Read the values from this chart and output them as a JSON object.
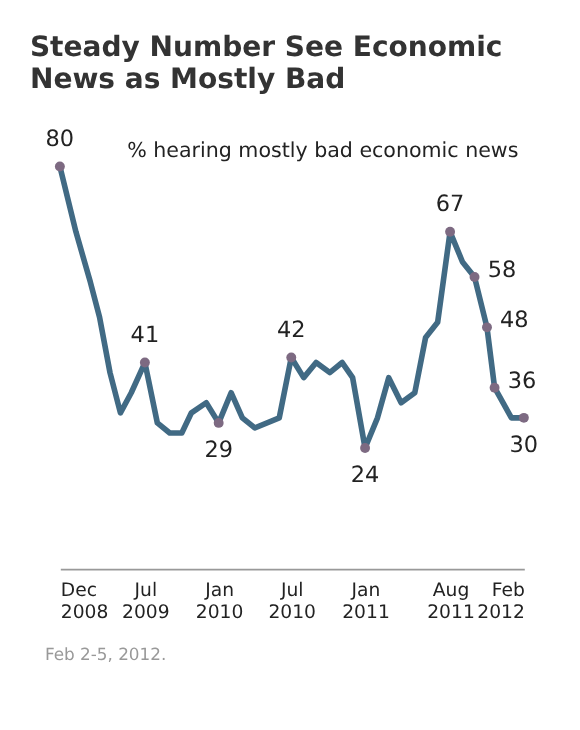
{
  "chart_data": {
    "type": "line",
    "title": "Steady Number See Economic News as Mostly Bad",
    "annotations": [
      "% hearing mostly bad economic news",
      "Feb 2-5, 2012."
    ],
    "x": [
      "2008-12-01",
      "2009-01-10",
      "2009-02-15",
      "2009-03-10",
      "2009-04-05",
      "2009-05-01",
      "2009-05-28",
      "2009-07-01",
      "2009-08-01",
      "2009-09-01",
      "2009-10-01",
      "2009-10-25",
      "2009-12-01",
      "2010-01-01",
      "2010-02-01",
      "2010-03-01",
      "2010-04-01",
      "2010-06-01",
      "2010-07-01",
      "2010-08-01",
      "2010-09-01",
      "2010-10-05",
      "2010-11-05",
      "2010-12-01",
      "2011-01-01",
      "2011-02-01",
      "2011-03-01",
      "2011-04-01",
      "2011-05-05",
      "2011-06-01",
      "2011-07-01",
      "2011-08-01",
      "2011-09-01",
      "2011-10-01",
      "2011-11-01",
      "2011-11-20",
      "2012-01-01",
      "2012-02-01"
    ],
    "series": [
      {
        "color": "#416a84",
        "values": [
          80,
          67,
          57,
          50,
          39,
          31,
          35,
          41,
          29,
          27,
          27,
          31,
          33,
          29,
          35,
          30,
          28,
          30,
          42,
          38,
          41,
          39,
          41,
          38,
          24,
          30,
          38,
          33,
          35,
          46,
          49,
          67,
          61,
          58,
          48,
          36,
          30,
          30
        ],
        "value_labels": [
          "80",
          null,
          null,
          null,
          null,
          null,
          null,
          "41",
          null,
          null,
          null,
          null,
          null,
          "29",
          null,
          null,
          null,
          null,
          "42",
          null,
          null,
          null,
          null,
          null,
          "24",
          null,
          null,
          null,
          null,
          null,
          null,
          "67",
          null,
          "58",
          "48",
          "36",
          null,
          "30"
        ]
      }
    ],
    "xlim": [
      "2008-12-01",
      "2012-02-01"
    ],
    "xticks": [
      {
        "value": "2008-12-01",
        "label": "Dec 2008"
      },
      {
        "value": "2009-07-01",
        "label": "Jul 2009"
      },
      {
        "value": "2010-01-01",
        "label": "Jan 2010"
      },
      {
        "value": "2010-07-01",
        "label": "Jul 2010"
      },
      {
        "value": "2011-01-01",
        "label": "Jan 2011"
      },
      {
        "value": "2011-08-01",
        "label": "Aug 2011"
      },
      {
        "value": "2012-02-01",
        "label": "Feb 2012"
      }
    ],
    "tick_labels": "x",
    "grid": false,
    "line_style": "solid"
  }
}
